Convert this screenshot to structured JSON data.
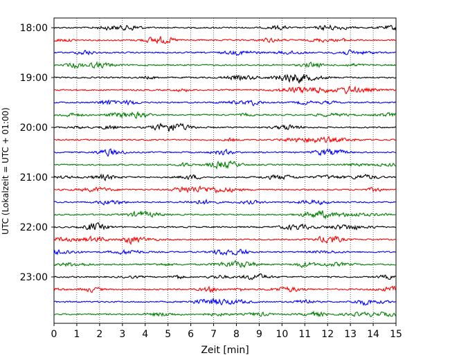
{
  "chart_data": {
    "type": "line",
    "title": "",
    "xlabel": "Zeit  [min]",
    "ylabel": "UTC (Lokalzeit = UTC + 01:00)",
    "xlim": [
      0,
      15
    ],
    "x_ticks": [
      "0",
      "1",
      "2",
      "3",
      "4",
      "5",
      "6",
      "7",
      "8",
      "9",
      "10",
      "11",
      "12",
      "13",
      "14",
      "15"
    ],
    "y_ticks": [
      "18:00",
      "19:00",
      "20:00",
      "21:00",
      "22:00",
      "23:00"
    ],
    "trace_interval_minutes": 15,
    "start_time": "18:00",
    "trace_count": 24,
    "trace_colors": [
      "#000000",
      "#ff0000",
      "#0000ff",
      "#008000"
    ],
    "grid": {
      "x": true,
      "y": false,
      "style": "dotted"
    },
    "series_description": "seismogram helicorder traces, one 15-minute trace per row"
  }
}
